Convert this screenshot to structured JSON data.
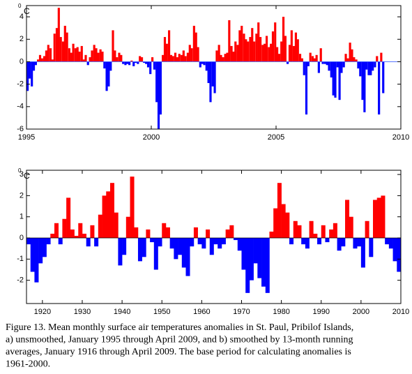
{
  "chart_data": [
    {
      "type": "bar",
      "unit_superscript": "0",
      "unit": "C",
      "positive_color": "#ff0000",
      "negative_color": "#0000ff",
      "xlim": [
        1995,
        2010
      ],
      "xticks": [
        1995,
        2000,
        2005,
        2010
      ],
      "ylim": [
        -6,
        5
      ],
      "yticks": [
        -6,
        -4,
        -2,
        0,
        2,
        4
      ],
      "x": [
        1995.0,
        1995.08,
        1995.17,
        1995.25,
        1995.33,
        1995.42,
        1995.5,
        1995.58,
        1995.67,
        1995.75,
        1995.83,
        1995.92,
        1996.0,
        1996.08,
        1996.17,
        1996.25,
        1996.33,
        1996.42,
        1996.5,
        1996.58,
        1996.67,
        1996.75,
        1996.83,
        1996.92,
        1997.0,
        1997.08,
        1997.17,
        1997.25,
        1997.33,
        1997.42,
        1997.5,
        1997.58,
        1997.67,
        1997.75,
        1997.83,
        1997.92,
        1998.0,
        1998.08,
        1998.17,
        1998.25,
        1998.33,
        1998.42,
        1998.5,
        1998.58,
        1998.67,
        1998.75,
        1998.83,
        1998.92,
        1999.0,
        1999.08,
        1999.17,
        1999.25,
        1999.33,
        1999.42,
        1999.5,
        1999.58,
        1999.67,
        1999.75,
        1999.83,
        1999.92,
        2000.0,
        2000.08,
        2000.17,
        2000.25,
        2000.33,
        2000.42,
        2000.5,
        2000.58,
        2000.67,
        2000.75,
        2000.83,
        2000.92,
        2001.0,
        2001.08,
        2001.17,
        2001.25,
        2001.33,
        2001.42,
        2001.5,
        2001.58,
        2001.67,
        2001.75,
        2001.83,
        2001.92,
        2002.0,
        2002.08,
        2002.17,
        2002.25,
        2002.33,
        2002.42,
        2002.5,
        2002.58,
        2002.67,
        2002.75,
        2002.83,
        2002.92,
        2003.0,
        2003.08,
        2003.17,
        2003.25,
        2003.33,
        2003.42,
        2003.5,
        2003.58,
        2003.67,
        2003.75,
        2003.83,
        2003.92,
        2004.0,
        2004.08,
        2004.17,
        2004.25,
        2004.33,
        2004.42,
        2004.5,
        2004.58,
        2004.67,
        2004.75,
        2004.83,
        2004.92,
        2005.0,
        2005.08,
        2005.17,
        2005.25,
        2005.33,
        2005.42,
        2005.5,
        2005.58,
        2005.67,
        2005.75,
        2005.83,
        2005.92,
        2006.0,
        2006.08,
        2006.17,
        2006.25,
        2006.33,
        2006.42,
        2006.5,
        2006.58,
        2006.67,
        2006.75,
        2006.83,
        2006.92,
        2007.0,
        2007.08,
        2007.17,
        2007.25,
        2007.33,
        2007.42,
        2007.5,
        2007.58,
        2007.67,
        2007.75,
        2007.83,
        2007.92,
        2008.0,
        2008.08,
        2008.17,
        2008.25,
        2008.33,
        2008.42,
        2008.5,
        2008.58,
        2008.67,
        2008.75,
        2008.83,
        2008.92,
        2009.0,
        2009.08,
        2009.17,
        2009.25
      ],
      "values": [
        -2.6,
        -1.5,
        -2.2,
        -0.8,
        -0.3,
        0.2,
        0.6,
        0.3,
        0.5,
        1.0,
        1.5,
        1.2,
        0.2,
        2.5,
        3.0,
        4.8,
        2.2,
        1.8,
        3.2,
        2.6,
        1.2,
        0.8,
        1.6,
        1.2,
        1.3,
        0.9,
        1.4,
        0.2,
        0.6,
        -0.3,
        0.4,
        1.0,
        1.5,
        1.2,
        0.8,
        1.1,
        0.9,
        -0.6,
        -2.6,
        -2.2,
        -0.8,
        2.8,
        1.0,
        0.4,
        0.8,
        0.6,
        -0.2,
        -0.3,
        -0.2,
        -0.3,
        0.1,
        -0.4,
        -0.1,
        -0.2,
        0.5,
        0.4,
        -0.1,
        -0.2,
        -0.5,
        -1.1,
        0.4,
        -0.7,
        -3.6,
        -6.0,
        -4.7,
        0.6,
        2.2,
        1.6,
        2.8,
        0.6,
        0.5,
        0.8,
        0.4,
        0.7,
        0.6,
        1.0,
        0.5,
        0.8,
        1.5,
        1.2,
        3.2,
        2.6,
        1.3,
        -0.5,
        -0.2,
        -0.3,
        -0.8,
        -1.9,
        -3.6,
        -2.2,
        -2.8,
        1.0,
        1.5,
        0.6,
        0.4,
        0.7,
        0.8,
        3.7,
        1.4,
        0.9,
        1.8,
        1.5,
        2.8,
        3.2,
        2.5,
        2.0,
        1.8,
        2.2,
        3.0,
        1.8,
        2.5,
        3.5,
        2.2,
        1.5,
        1.6,
        2.3,
        1.3,
        1.6,
        2.7,
        3.5,
        1.3,
        0.7,
        1.8,
        4.0,
        2.3,
        -0.2,
        1.5,
        2.8,
        1.4,
        2.6,
        2.0,
        0.7,
        0.3,
        -1.2,
        -4.7,
        -0.4,
        0.8,
        0.5,
        0.3,
        0.6,
        -1.0,
        1.2,
        -0.2,
        -0.2,
        -0.3,
        -0.8,
        -1.4,
        -3.0,
        -3.2,
        -0.5,
        -3.4,
        -1.0,
        -0.5,
        0.7,
        0.3,
        1.7,
        1.1,
        0.4,
        0.2,
        -0.6,
        -1.3,
        -3.4,
        -4.5,
        -0.7,
        -1.2,
        -1.2,
        -0.8,
        -0.5,
        0.5,
        -4.7,
        0.8,
        -2.8
      ]
    },
    {
      "type": "bar",
      "unit_superscript": "0",
      "unit": "C",
      "positive_color": "#ff0000",
      "negative_color": "#0000ff",
      "xlim": [
        1916,
        2010
      ],
      "xticks": [
        1920,
        1930,
        1940,
        1950,
        1960,
        1970,
        1980,
        1990,
        2000,
        2010
      ],
      "ylim": [
        -3.1,
        3.2
      ],
      "yticks": [
        -2,
        -1,
        0,
        1,
        2,
        3
      ],
      "x": [
        1916,
        1917,
        1918,
        1919,
        1920,
        1921,
        1922,
        1923,
        1924,
        1925,
        1926,
        1927,
        1928,
        1929,
        1930,
        1931,
        1932,
        1933,
        1934,
        1935,
        1936,
        1937,
        1938,
        1939,
        1940,
        1941,
        1942,
        1943,
        1944,
        1945,
        1946,
        1947,
        1948,
        1949,
        1950,
        1951,
        1952,
        1953,
        1954,
        1955,
        1956,
        1957,
        1958,
        1959,
        1960,
        1961,
        1962,
        1963,
        1964,
        1965,
        1966,
        1967,
        1968,
        1969,
        1970,
        1971,
        1972,
        1973,
        1974,
        1975,
        1976,
        1977,
        1978,
        1979,
        1980,
        1981,
        1982,
        1983,
        1984,
        1985,
        1986,
        1987,
        1988,
        1989,
        1990,
        1991,
        1992,
        1993,
        1994,
        1995,
        1996,
        1997,
        1998,
        1999,
        2000,
        2001,
        2002,
        2003,
        2004,
        2005,
        2006,
        2007,
        2008,
        2009
      ],
      "values": [
        -0.3,
        -1.6,
        -2.1,
        -1.2,
        -0.9,
        -0.3,
        0.2,
        0.7,
        -0.3,
        0.9,
        1.9,
        0.4,
        0.1,
        0.7,
        0.2,
        -0.4,
        0.6,
        -0.4,
        1.1,
        2.0,
        2.2,
        2.6,
        1.2,
        -1.3,
        -0.8,
        1.0,
        2.9,
        0.5,
        -1.1,
        -0.9,
        0.4,
        -0.2,
        -1.5,
        -0.4,
        0.7,
        0.5,
        -0.5,
        -1.0,
        -0.8,
        -1.4,
        -1.8,
        -0.4,
        0.5,
        -0.3,
        -0.5,
        0.4,
        -0.8,
        -0.3,
        -0.5,
        -0.3,
        0.4,
        0.6,
        -0.1,
        -0.6,
        -1.5,
        -2.6,
        -2.0,
        -1.2,
        -1.9,
        -2.3,
        -2.6,
        0.3,
        1.4,
        2.6,
        1.6,
        1.2,
        -0.3,
        0.8,
        0.6,
        -0.3,
        -0.5,
        0.8,
        0.2,
        -0.3,
        0.6,
        -0.2,
        0.4,
        0.7,
        -0.6,
        -0.4,
        1.8,
        1.0,
        -0.5,
        -0.4,
        -1.4,
        0.8,
        -0.9,
        1.8,
        1.9,
        2.0,
        -0.3,
        -0.5,
        -1.1,
        -1.6
      ]
    }
  ],
  "caption": [
    "Figure 13.  Mean monthly surface air temperatures anomalies in St. Paul, Pribilof Islands,",
    "a) unsmoothed, January 1995 through April 2009, and b) smoothed by 13-month running",
    "averages, January 1916 through April 2009. The base period for calculating anomalies is",
    "1961-2000."
  ]
}
